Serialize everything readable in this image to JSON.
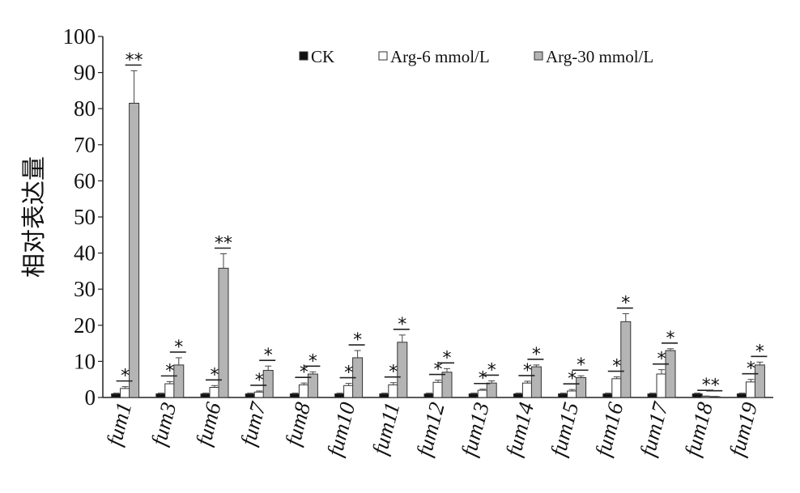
{
  "chart_data": {
    "type": "bar",
    "title": "",
    "xlabel": "",
    "ylabel": "相对表达量",
    "ylim": [
      0,
      100
    ],
    "yticks": [
      "0",
      "10",
      "20",
      "30",
      "40",
      "50",
      "60",
      "70",
      "80",
      "90",
      "100"
    ],
    "legend_position": "top-right",
    "grid": false,
    "categories": [
      "fum1",
      "fum3",
      "fum6",
      "fum7",
      "fum8",
      "fum10",
      "fum11",
      "fum12",
      "fum13",
      "fum14",
      "fum15",
      "fum16",
      "fum17",
      "fum18",
      "fum19"
    ],
    "series": [
      {
        "name": "CK",
        "color": "#111111",
        "values": [
          1,
          1,
          1,
          1,
          1,
          1,
          1,
          1,
          1,
          1,
          1,
          1,
          1,
          1,
          1
        ],
        "errors": [
          0.2,
          0.2,
          0.2,
          0.2,
          0.2,
          0.2,
          0.2,
          0.2,
          0.2,
          0.2,
          0.2,
          0.2,
          0.2,
          0.2,
          0.2
        ],
        "significance": [
          "",
          "",
          "",
          "",
          "",
          "",
          "",
          "",
          "",
          "",
          "",
          "",
          "",
          "",
          ""
        ]
      },
      {
        "name": "Arg-6 mmol/L",
        "color": "#ffffff",
        "values": [
          2.5,
          3.8,
          2.8,
          1.5,
          3.5,
          3.3,
          3.5,
          4.2,
          2,
          4,
          1.8,
          5.2,
          6.5,
          0.3,
          4.3
        ],
        "errors": [
          0.5,
          0.6,
          0.5,
          0.3,
          0.5,
          0.6,
          0.6,
          0.6,
          0.3,
          0.5,
          0.4,
          0.5,
          1.2,
          0.1,
          0.7
        ],
        "significance": [
          "*",
          "*",
          "*",
          "*",
          "*",
          "*",
          "*",
          "*",
          "*",
          "*",
          "*",
          "*",
          "*",
          "*",
          "*"
        ]
      },
      {
        "name": "Arg-30 mmol/L",
        "color": "#b4b4b4",
        "values": [
          81.5,
          9,
          35.8,
          7.5,
          6.5,
          11,
          15.3,
          7,
          4,
          8.5,
          5.5,
          21,
          13,
          0.2,
          9
        ],
        "errors": [
          9,
          2,
          4,
          1.2,
          0.6,
          2,
          2,
          1,
          0.6,
          0.5,
          0.5,
          2.2,
          0.5,
          0.1,
          0.8
        ],
        "significance": [
          "**",
          "*",
          "**",
          "*",
          "*",
          "*",
          "*",
          "*",
          "*",
          "*",
          "*",
          "*",
          "*",
          "*",
          "*"
        ]
      }
    ]
  }
}
